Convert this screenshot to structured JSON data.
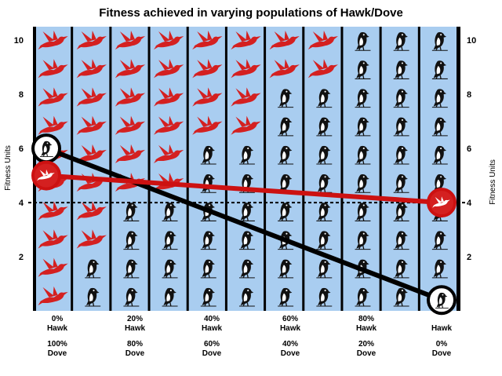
{
  "chart_data": {
    "type": "line",
    "title": "Fitness achieved in varying populations of Hawk/Dove",
    "ylabel_left": "Fitness Units",
    "ylabel_right": "Fitness Units",
    "ylim": [
      0,
      10.5
    ],
    "yticks_left": [
      "2",
      "4",
      "6",
      "8",
      "10"
    ],
    "yticks_right": [
      "2",
      "4",
      "6",
      "8",
      "10"
    ],
    "y_tick_values": [
      2,
      4,
      6,
      8,
      10
    ],
    "reference_line": 4,
    "x": [
      0,
      20,
      40,
      60,
      80,
      100
    ],
    "x_tick_labels": [
      {
        "hawk": "0%",
        "hawk_label": "Hawk",
        "dove": "100%",
        "dove_label": "Dove"
      },
      {
        "hawk": "20%",
        "hawk_label": "Hawk",
        "dove": "80%",
        "dove_label": "Dove"
      },
      {
        "hawk": "40%",
        "hawk_label": "Hawk",
        "dove": "60%",
        "dove_label": "Dove"
      },
      {
        "hawk": "60%",
        "hawk_label": "Hawk",
        "dove": "40%",
        "dove_label": "Dove"
      },
      {
        "hawk": "80%",
        "hawk_label": "Hawk",
        "dove": "20%",
        "dove_label": "Dove"
      },
      {
        "hawk": "",
        "hawk_label": "Hawk",
        "dove": "0%",
        "dove_label": "Dove"
      }
    ],
    "series": [
      {
        "values": [
          6,
          0.4
        ],
        "x": [
          0,
          100
        ],
        "color": "#000000"
      },
      {
        "values": [
          5,
          4
        ],
        "x": [
          0,
          100
        ],
        "color": "#cc1111"
      }
    ],
    "population_columns": [
      {
        "doves": 10,
        "hawks": 0
      },
      {
        "doves": 8,
        "hawks": 2
      },
      {
        "doves": 6,
        "hawks": 4
      },
      {
        "doves": 6,
        "hawks": 4
      },
      {
        "doves": 4,
        "hawks": 6
      },
      {
        "doves": 4,
        "hawks": 6
      },
      {
        "doves": 2,
        "hawks": 8
      },
      {
        "doves": 2,
        "hawks": 8
      },
      {
        "doves": 0,
        "hawks": 10
      },
      {
        "doves": 0,
        "hawks": 10
      },
      {
        "doves": 0,
        "hawks": 10
      }
    ],
    "colors": {
      "panel": "#a9cdf0",
      "divider": "#000000",
      "dove": "#d42020",
      "hawk": "#111111",
      "dove_line": "#cc1111",
      "hawk_line": "#000000"
    },
    "icons": {
      "dove": "dove-icon",
      "hawk": "hawk-icon"
    }
  }
}
